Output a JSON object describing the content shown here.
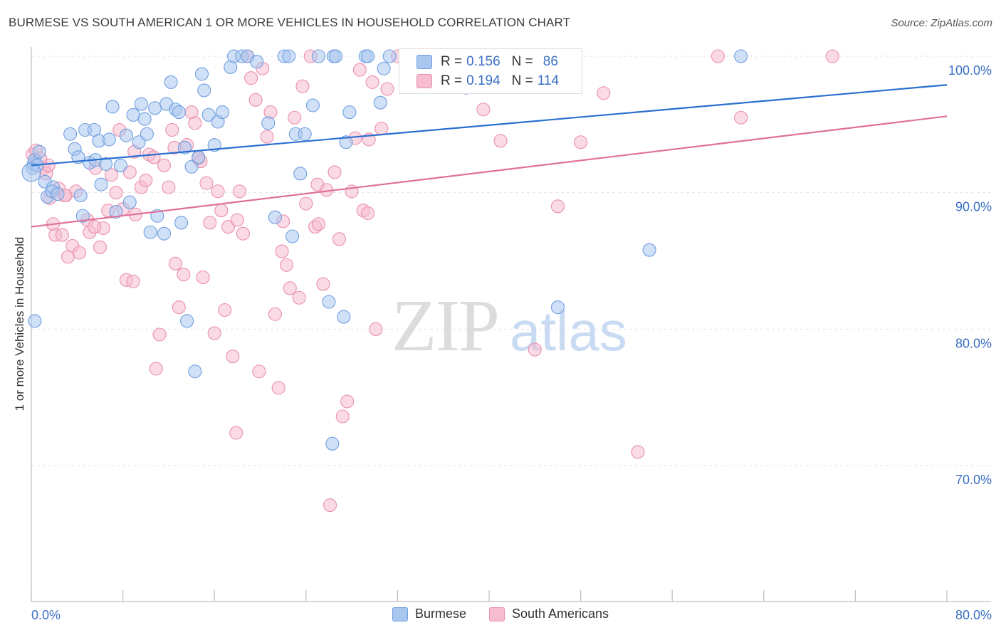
{
  "header": {
    "title": "BURMESE VS SOUTH AMERICAN 1 OR MORE VEHICLES IN HOUSEHOLD CORRELATION CHART",
    "source": "Source: ZipAtlas.com"
  },
  "watermark": {
    "zip": "ZIP",
    "atlas": "atlas"
  },
  "legend_top": {
    "rows": [
      {
        "r_label": "R =",
        "r_value": "0.156",
        "n_label": "N =",
        "n_value": "86"
      },
      {
        "r_label": "R =",
        "r_value": "0.194",
        "n_label": "N =",
        "n_value": "114"
      }
    ]
  },
  "legend_bottom": {
    "items": [
      "Burmese",
      "South Americans"
    ]
  },
  "colors": {
    "blue_fill": "#a9c6ef",
    "blue_stroke": "#6f9fe0",
    "blue_line": "#2a6fd0",
    "pink_fill": "#f6bcd0",
    "pink_stroke": "#ea8fae",
    "pink_line": "#e0709a",
    "axis_text": "#3a6fc4",
    "grid": "#e4e4e4"
  },
  "chart_data": {
    "type": "scatter",
    "title": "BURMESE VS SOUTH AMERICAN 1 OR MORE VEHICLES IN HOUSEHOLD CORRELATION CHART",
    "xlabel": "",
    "ylabel": "1 or more Vehicles in Household",
    "xlim": [
      0,
      80
    ],
    "ylim": [
      61,
      102
    ],
    "x_tick_labels": [
      "0.0%",
      "80.0%"
    ],
    "y_ticks": [
      70,
      80,
      90,
      100
    ],
    "y_tick_labels": [
      "70.0%",
      "80.0%",
      "90.0%",
      "100.0%"
    ],
    "grid": true,
    "legend_position": "top-center",
    "series": [
      {
        "name": "Burmese",
        "r": 0.156,
        "n": 86,
        "trend": {
          "x": [
            0,
            80
          ],
          "y": [
            92.0,
            97.9
          ]
        },
        "points": [
          [
            0.1,
            91.8
          ],
          [
            0.2,
            92.1
          ],
          [
            0.3,
            92.4
          ],
          [
            0.5,
            92.0
          ],
          [
            0.7,
            93.0
          ],
          [
            1.2,
            90.8
          ],
          [
            1.4,
            89.7
          ],
          [
            1.9,
            90.4
          ],
          [
            1.8,
            90.1
          ],
          [
            2.3,
            89.9
          ],
          [
            3.4,
            94.3
          ],
          [
            3.8,
            93.2
          ],
          [
            4.1,
            92.6
          ],
          [
            4.3,
            89.8
          ],
          [
            4.5,
            88.3
          ],
          [
            4.7,
            94.6
          ],
          [
            5.1,
            92.2
          ],
          [
            5.5,
            94.6
          ],
          [
            5.6,
            92.4
          ],
          [
            5.9,
            93.8
          ],
          [
            6.1,
            90.6
          ],
          [
            6.5,
            92.1
          ],
          [
            6.8,
            93.9
          ],
          [
            7.1,
            96.3
          ],
          [
            7.4,
            88.6
          ],
          [
            7.8,
            92.0
          ],
          [
            8.3,
            94.2
          ],
          [
            8.6,
            89.3
          ],
          [
            8.9,
            95.7
          ],
          [
            9.4,
            93.7
          ],
          [
            9.6,
            96.5
          ],
          [
            9.9,
            95.4
          ],
          [
            10.1,
            94.3
          ],
          [
            10.4,
            87.1
          ],
          [
            10.8,
            96.2
          ],
          [
            11.0,
            88.3
          ],
          [
            11.6,
            87.0
          ],
          [
            11.8,
            96.5
          ],
          [
            12.2,
            98.1
          ],
          [
            12.6,
            96.1
          ],
          [
            12.9,
            95.9
          ],
          [
            13.1,
            87.8
          ],
          [
            13.4,
            93.3
          ],
          [
            13.6,
            80.6
          ],
          [
            14.0,
            91.9
          ],
          [
            14.3,
            76.9
          ],
          [
            14.6,
            92.6
          ],
          [
            14.9,
            98.7
          ],
          [
            15.1,
            97.5
          ],
          [
            15.5,
            95.7
          ],
          [
            16.0,
            93.5
          ],
          [
            16.3,
            95.2
          ],
          [
            16.7,
            95.9
          ],
          [
            17.4,
            99.2
          ],
          [
            17.7,
            100.0
          ],
          [
            18.4,
            100.0
          ],
          [
            18.9,
            100.0
          ],
          [
            19.7,
            99.6
          ],
          [
            20.7,
            95.1
          ],
          [
            21.3,
            88.2
          ],
          [
            22.1,
            100.0
          ],
          [
            22.5,
            100.0
          ],
          [
            22.8,
            86.8
          ],
          [
            23.1,
            94.3
          ],
          [
            23.5,
            91.4
          ],
          [
            23.9,
            94.3
          ],
          [
            24.6,
            96.4
          ],
          [
            25.1,
            100.0
          ],
          [
            26.0,
            82.0
          ],
          [
            26.4,
            100.0
          ],
          [
            26.6,
            100.0
          ],
          [
            26.3,
            71.6
          ],
          [
            27.3,
            80.9
          ],
          [
            27.5,
            93.7
          ],
          [
            27.8,
            95.9
          ],
          [
            29.2,
            100.0
          ],
          [
            29.4,
            100.0
          ],
          [
            30.5,
            96.6
          ],
          [
            30.8,
            99.1
          ],
          [
            31.3,
            100.0
          ],
          [
            38.0,
            97.7
          ],
          [
            46.0,
            81.6
          ],
          [
            54.0,
            85.8
          ],
          [
            62.0,
            100.0
          ],
          [
            0.3,
            80.6
          ],
          [
            0.0,
            91.5
          ]
        ]
      },
      {
        "name": "South Americans",
        "r": 0.194,
        "n": 114,
        "trend": {
          "x": [
            0,
            80
          ],
          "y": [
            87.5,
            95.6
          ]
        },
        "points": [
          [
            0.1,
            92.8
          ],
          [
            0.4,
            93.1
          ],
          [
            1.1,
            91.8
          ],
          [
            1.3,
            91.4
          ],
          [
            1.6,
            89.6
          ],
          [
            1.9,
            87.7
          ],
          [
            2.1,
            86.9
          ],
          [
            2.4,
            90.3
          ],
          [
            2.7,
            86.9
          ],
          [
            2.9,
            89.8
          ],
          [
            3.2,
            85.3
          ],
          [
            3.6,
            86.1
          ],
          [
            3.9,
            90.1
          ],
          [
            4.2,
            85.6
          ],
          [
            4.9,
            88.0
          ],
          [
            5.1,
            87.1
          ],
          [
            5.6,
            91.8
          ],
          [
            6.0,
            86.0
          ],
          [
            6.3,
            87.4
          ],
          [
            6.7,
            88.7
          ],
          [
            7.0,
            91.3
          ],
          [
            7.4,
            90.0
          ],
          [
            7.7,
            94.6
          ],
          [
            8.0,
            88.8
          ],
          [
            8.3,
            83.6
          ],
          [
            8.6,
            91.5
          ],
          [
            8.9,
            83.5
          ],
          [
            9.1,
            88.4
          ],
          [
            9.6,
            90.4
          ],
          [
            10.0,
            90.9
          ],
          [
            10.3,
            92.8
          ],
          [
            10.7,
            92.6
          ],
          [
            10.9,
            77.1
          ],
          [
            11.2,
            79.6
          ],
          [
            11.6,
            92.0
          ],
          [
            12.0,
            90.4
          ],
          [
            12.3,
            94.6
          ],
          [
            12.6,
            84.8
          ],
          [
            12.9,
            81.6
          ],
          [
            13.3,
            84.0
          ],
          [
            13.6,
            93.5
          ],
          [
            14.0,
            95.9
          ],
          [
            14.3,
            95.1
          ],
          [
            14.6,
            92.5
          ],
          [
            15.0,
            83.8
          ],
          [
            15.3,
            90.7
          ],
          [
            15.6,
            87.8
          ],
          [
            16.0,
            79.7
          ],
          [
            16.3,
            90.1
          ],
          [
            16.6,
            88.7
          ],
          [
            16.9,
            81.4
          ],
          [
            17.2,
            87.5
          ],
          [
            17.6,
            78.0
          ],
          [
            17.9,
            72.4
          ],
          [
            18.2,
            90.1
          ],
          [
            18.5,
            87.0
          ],
          [
            18.9,
            100.0
          ],
          [
            19.2,
            98.4
          ],
          [
            19.6,
            96.8
          ],
          [
            19.9,
            76.9
          ],
          [
            20.2,
            99.1
          ],
          [
            20.6,
            94.1
          ],
          [
            20.9,
            95.9
          ],
          [
            21.3,
            81.1
          ],
          [
            21.6,
            75.7
          ],
          [
            21.9,
            85.7
          ],
          [
            22.3,
            84.7
          ],
          [
            22.6,
            83.0
          ],
          [
            23.0,
            95.5
          ],
          [
            23.4,
            82.3
          ],
          [
            23.7,
            97.8
          ],
          [
            24.0,
            89.2
          ],
          [
            24.4,
            100.0
          ],
          [
            24.8,
            87.5
          ],
          [
            25.1,
            87.7
          ],
          [
            25.5,
            83.3
          ],
          [
            25.8,
            90.2
          ],
          [
            26.1,
            67.1
          ],
          [
            26.5,
            91.5
          ],
          [
            26.9,
            86.6
          ],
          [
            27.2,
            73.6
          ],
          [
            27.6,
            74.7
          ],
          [
            28.0,
            90.1
          ],
          [
            28.3,
            94.0
          ],
          [
            28.7,
            99.0
          ],
          [
            29.0,
            88.7
          ],
          [
            29.4,
            88.5
          ],
          [
            29.8,
            98.1
          ],
          [
            30.1,
            80.0
          ],
          [
            30.6,
            94.7
          ],
          [
            31.1,
            97.6
          ],
          [
            32.0,
            100.0
          ],
          [
            38.0,
            100.0
          ],
          [
            39.5,
            96.1
          ],
          [
            41.0,
            93.8
          ],
          [
            44.0,
            78.5
          ],
          [
            46.0,
            89.0
          ],
          [
            48.0,
            93.7
          ],
          [
            50.0,
            97.3
          ],
          [
            53.0,
            71.0
          ],
          [
            60.0,
            100.0
          ],
          [
            62.0,
            95.5
          ],
          [
            70.0,
            100.0
          ],
          [
            1.5,
            92.0
          ],
          [
            3.0,
            89.8
          ],
          [
            5.5,
            87.5
          ],
          [
            9.0,
            93.0
          ],
          [
            12.5,
            93.3
          ],
          [
            14.8,
            92.3
          ],
          [
            18.0,
            88.0
          ],
          [
            22.0,
            87.9
          ],
          [
            25.0,
            90.6
          ],
          [
            29.5,
            93.9
          ],
          [
            0.8,
            92.5
          ]
        ]
      }
    ]
  }
}
